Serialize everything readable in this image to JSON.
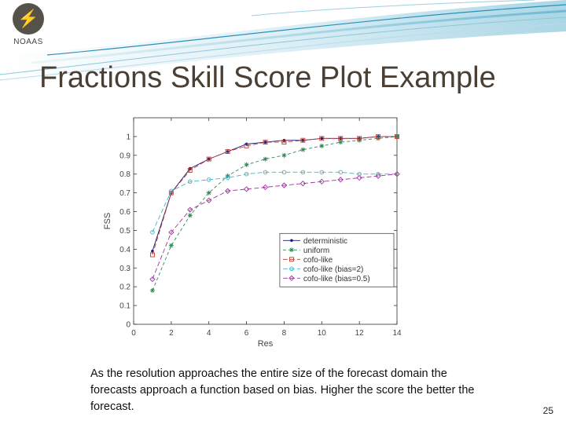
{
  "slide": {
    "title": "Fractions Skill Score Plot Example",
    "caption": "As the resolution approaches the entire size of the forecast domain the forecasts approach a function based on bias.  Higher the score the better the forecast.",
    "page_number": "25",
    "logo_text": "NOAAS",
    "colors": {
      "title": "#4a3f34",
      "banner_accent": "#2a8fb8"
    }
  },
  "chart_data": {
    "type": "line",
    "xlabel": "Res",
    "ylabel": "FSS",
    "xlim": [
      0,
      14
    ],
    "ylim": [
      0,
      1.1
    ],
    "x_ticks": [
      "0",
      "2",
      "4",
      "6",
      "8",
      "10",
      "12",
      "14"
    ],
    "y_ticks": [
      "0",
      "0.1",
      "0.2",
      "0.3",
      "0.4",
      "0.5",
      "0.6",
      "0.7",
      "0.8",
      "0.9",
      "1"
    ],
    "legend_position": "bottom-right",
    "grid": false,
    "x": [
      1,
      2,
      3,
      4,
      5,
      6,
      7,
      8,
      9,
      10,
      11,
      12,
      13,
      14
    ],
    "series": [
      {
        "name": "deterministic",
        "color": "#1a1a7a",
        "marker": "dot",
        "dash": "",
        "values": [
          0.39,
          0.7,
          0.83,
          0.88,
          0.92,
          0.96,
          0.97,
          0.98,
          0.98,
          0.99,
          0.99,
          0.99,
          1.0,
          1.0
        ]
      },
      {
        "name": "uniform",
        "color": "#2e8b57",
        "marker": "star",
        "dash": "4,3",
        "values": [
          0.18,
          0.42,
          0.58,
          0.7,
          0.79,
          0.85,
          0.88,
          0.9,
          0.93,
          0.95,
          0.97,
          0.98,
          0.99,
          1.0
        ]
      },
      {
        "name": "cofo-like",
        "color": "#c0392b",
        "marker": "square",
        "dash": "6,3",
        "values": [
          0.37,
          0.7,
          0.82,
          0.88,
          0.92,
          0.95,
          0.97,
          0.97,
          0.98,
          0.99,
          0.99,
          0.99,
          1.0,
          1.0
        ]
      },
      {
        "name": "cofo-like (bias=2)",
        "color": "#3cb8c8",
        "marker": "circle",
        "dash": "6,3",
        "values": [
          0.49,
          0.71,
          0.76,
          0.77,
          0.78,
          0.8,
          0.81,
          0.81,
          0.81,
          0.81,
          0.81,
          0.8,
          0.8,
          0.8
        ]
      },
      {
        "name": "cofo-like (bias=0.5)",
        "color": "#a032a0",
        "marker": "diamond",
        "dash": "6,3",
        "values": [
          0.24,
          0.49,
          0.61,
          0.66,
          0.71,
          0.72,
          0.73,
          0.74,
          0.75,
          0.76,
          0.77,
          0.78,
          0.79,
          0.8
        ]
      }
    ]
  }
}
